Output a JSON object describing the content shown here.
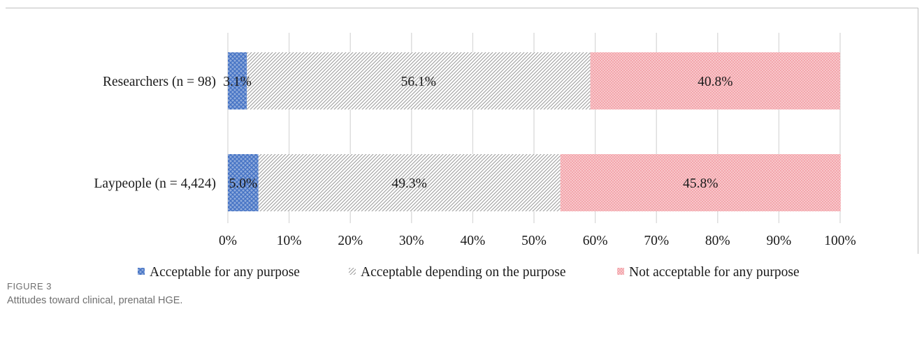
{
  "chart_data": {
    "type": "bar",
    "stacked": true,
    "orientation": "horizontal",
    "categories": [
      "Researchers (n = 98)",
      "Laypeople (n = 4,424)"
    ],
    "series": [
      {
        "name": "Acceptable for any purpose",
        "values": [
          3.1,
          5.0
        ],
        "labels": [
          "3.1%",
          "5.0%"
        ],
        "color": "#4472c4"
      },
      {
        "name": "Acceptable depending on the purpose",
        "values": [
          56.1,
          49.3
        ],
        "labels": [
          "56.1%",
          "49.3%"
        ],
        "color": "#a6a6a6"
      },
      {
        "name": "Not acceptable for any purpose",
        "values": [
          40.8,
          45.8
        ],
        "labels": [
          "40.8%",
          "45.8%"
        ],
        "color": "#f4a7ad"
      }
    ],
    "xlim": [
      0,
      100
    ],
    "xticks": [
      "0%",
      "10%",
      "20%",
      "30%",
      "40%",
      "50%",
      "60%",
      "70%",
      "80%",
      "90%",
      "100%"
    ],
    "grid": true,
    "legend_position": "bottom"
  },
  "figure": {
    "label": "FIGURE 3",
    "caption": "Attitudes toward clinical, prenatal HGE."
  }
}
